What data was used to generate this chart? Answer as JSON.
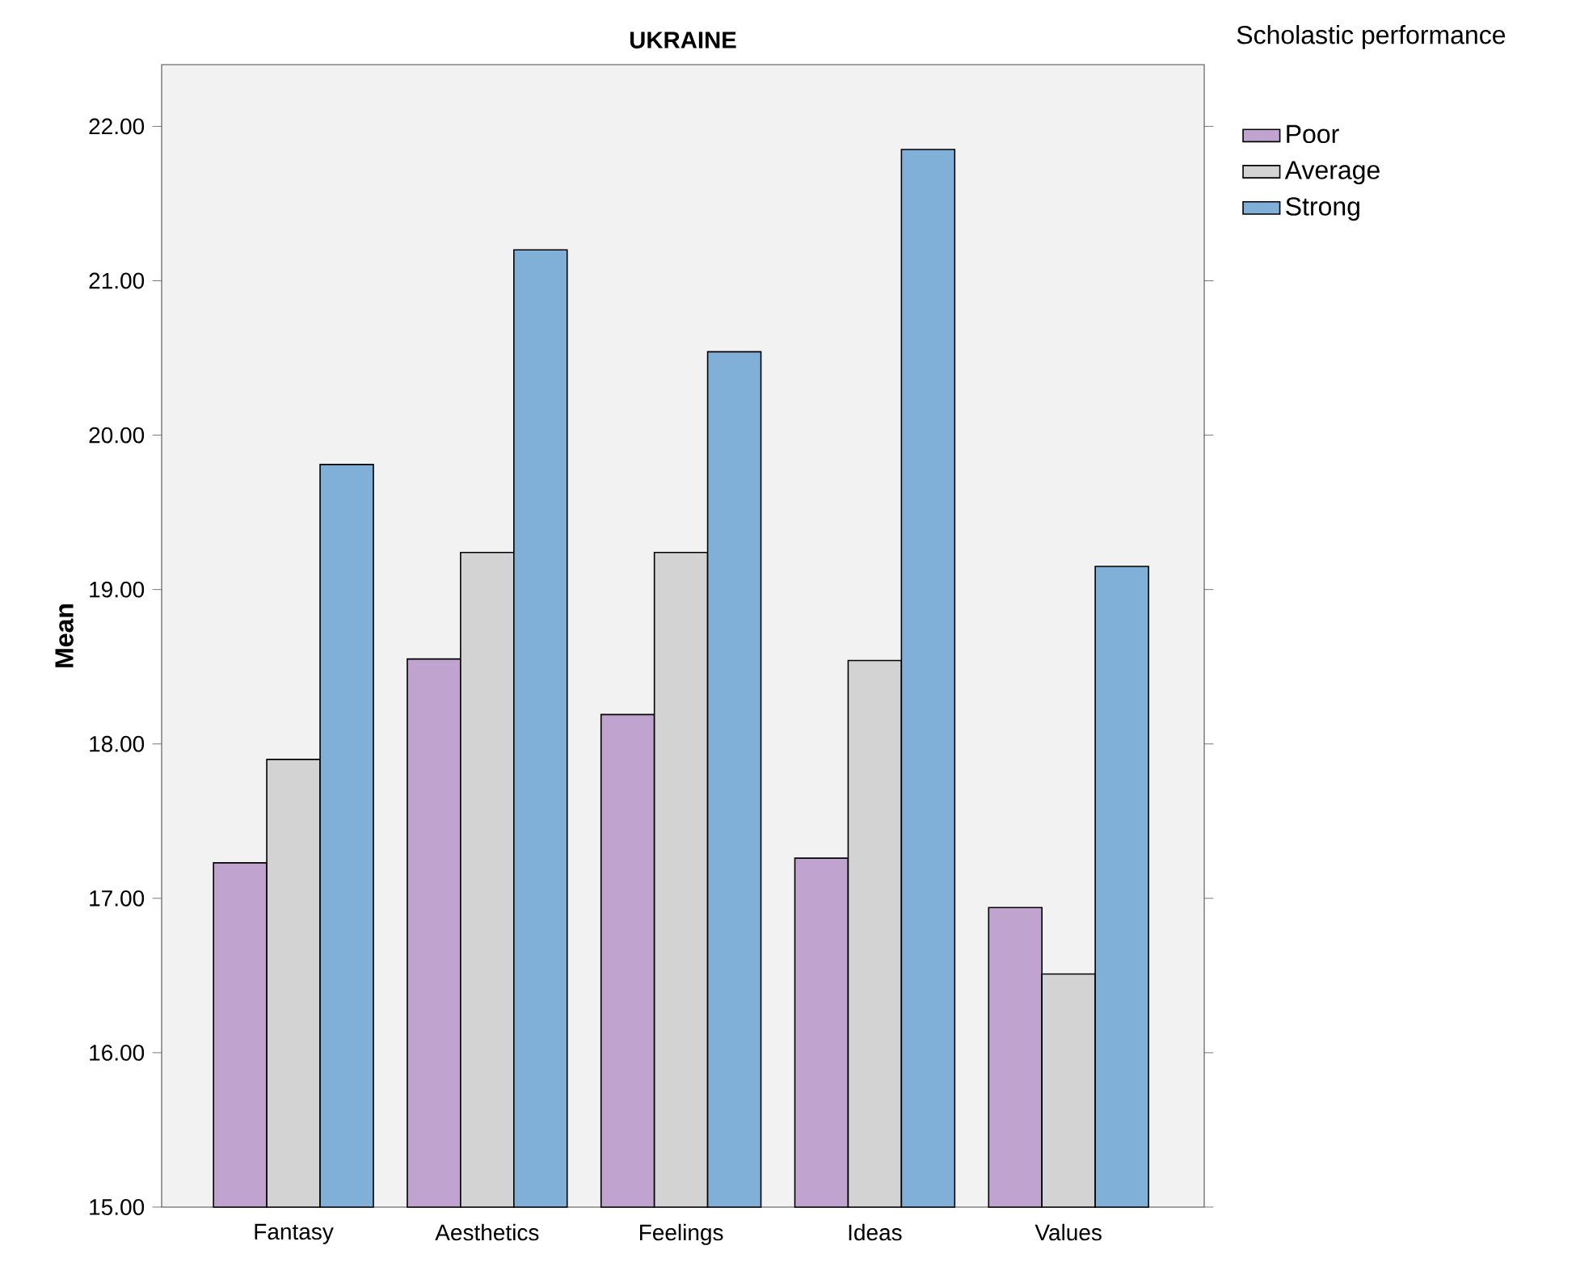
{
  "chart_data": {
    "type": "bar",
    "title": "UKRAINE",
    "ylabel": "Mean",
    "legend_title": "Scholastic performance",
    "categories": [
      "Fantasy",
      "Aesthetics",
      "Feelings",
      "Ideas",
      "Values"
    ],
    "series": [
      {
        "name": "Poor",
        "color": "#c0a3cf",
        "values": [
          17.23,
          18.55,
          18.19,
          17.26,
          16.94
        ]
      },
      {
        "name": "Average",
        "color": "#d3d3d3",
        "values": [
          17.9,
          19.24,
          19.24,
          18.54,
          16.51
        ]
      },
      {
        "name": "Strong",
        "color": "#80afd8",
        "values": [
          19.81,
          21.2,
          20.54,
          21.85,
          19.15
        ]
      }
    ],
    "ylim": [
      15,
      22.4
    ],
    "yticks": [
      {
        "value": 15,
        "label": "15.00"
      },
      {
        "value": 16,
        "label": "16.00"
      },
      {
        "value": 17,
        "label": "17.00"
      },
      {
        "value": 18,
        "label": "18.00"
      },
      {
        "value": 19,
        "label": "19.00"
      },
      {
        "value": 20,
        "label": "20.00"
      },
      {
        "value": 21,
        "label": "21.00"
      },
      {
        "value": 22,
        "label": "22.00"
      }
    ],
    "grid": false,
    "legend": "top right"
  }
}
